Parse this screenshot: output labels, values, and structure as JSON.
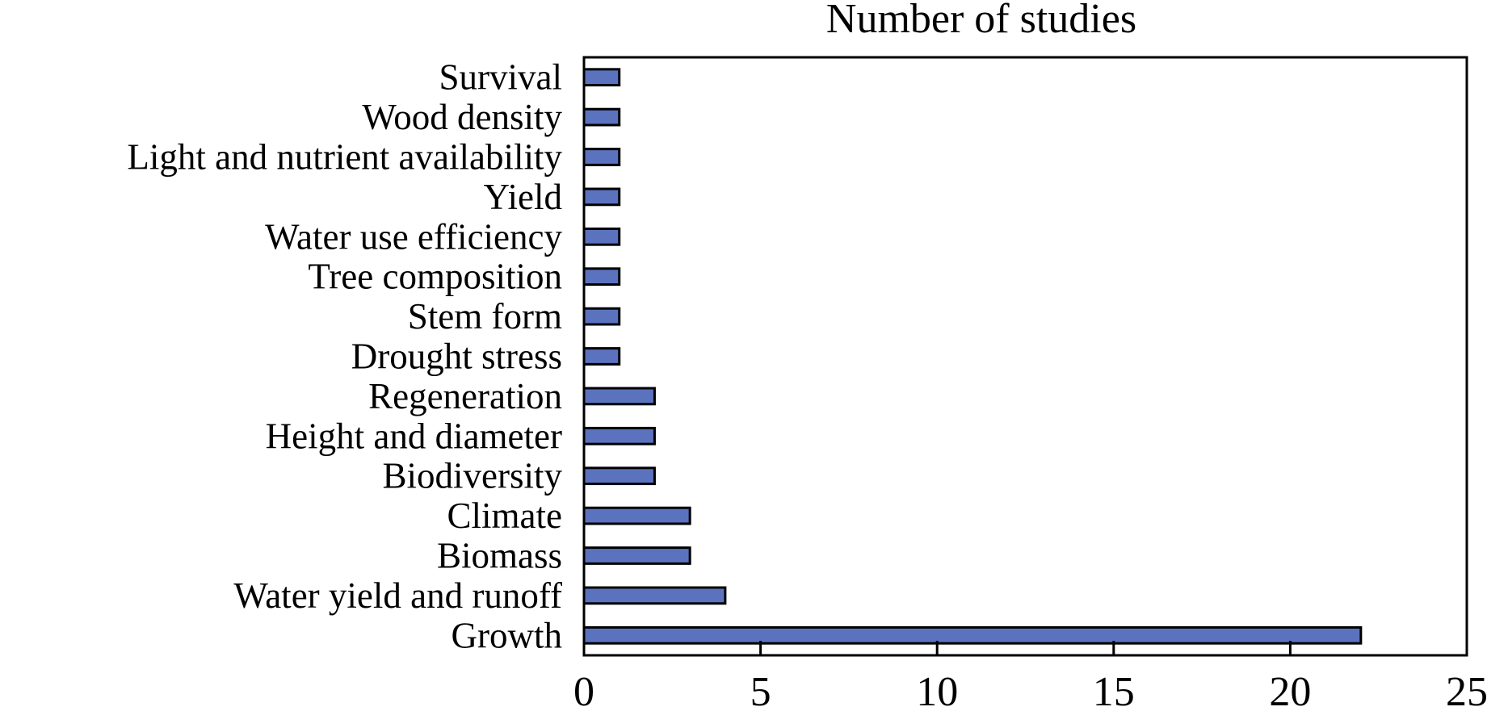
{
  "chart_data": {
    "type": "bar",
    "orientation": "horizontal",
    "title": "Number of studies",
    "xlabel": "",
    "ylabel": "",
    "categories": [
      "Survival",
      "Wood density",
      "Light and nutrient availability",
      "Yield",
      "Water use efficiency",
      "Tree composition",
      "Stem form",
      "Drought stress",
      "Regeneration",
      "Height and diameter",
      "Biodiversity",
      "Climate",
      "Biomass",
      "Water yield and runoff",
      "Growth"
    ],
    "values": [
      1,
      1,
      1,
      1,
      1,
      1,
      1,
      1,
      2,
      2,
      2,
      3,
      3,
      4,
      22
    ],
    "xlim": [
      0,
      25
    ],
    "xticks": [
      0,
      5,
      10,
      15,
      20,
      25
    ],
    "xtick_labels": [
      "0",
      "5",
      "10",
      "15",
      "20",
      "25"
    ],
    "axis_position": "x-axis ticks at bottom, title at top",
    "grid": false,
    "legend": "none",
    "bar_color": "#5b72be",
    "bar_edge_color": "#000000"
  }
}
